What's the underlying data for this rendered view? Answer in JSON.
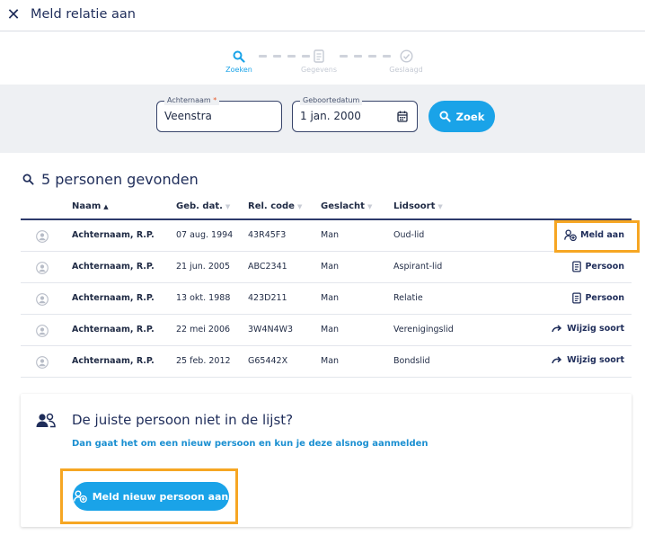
{
  "header": {
    "title": "Meld relatie aan",
    "close_icon": "close-icon"
  },
  "stepper": {
    "steps": [
      {
        "label": "Zoeken",
        "icon": "search-icon",
        "active": true
      },
      {
        "label": "Gegevens",
        "icon": "document-icon",
        "active": false
      },
      {
        "label": "Geslaagd",
        "icon": "check-circle-icon",
        "active": false
      }
    ]
  },
  "search": {
    "achternaam_label": "Achternaam",
    "required_mark": "*",
    "achternaam_value": "Veenstra",
    "geboortedatum_label": "Geboortedatum",
    "geboortedatum_value": "1 jan. 2000",
    "zoek_label": "Zoek"
  },
  "results": {
    "title": "5 personen gevonden",
    "columns": [
      "Naam",
      "Geb. dat.",
      "Rel. code",
      "Geslacht",
      "Lidsoort"
    ],
    "rows": [
      {
        "name": "Achternaam, R.P.",
        "dob": "07 aug. 1994",
        "code": "43R45F3",
        "gender": "Man",
        "type": "Oud-lid",
        "action": "Meld aan",
        "action_icon": "person-add-icon"
      },
      {
        "name": "Achternaam, R.P.",
        "dob": "21 jun. 2005",
        "code": "ABC2341",
        "gender": "Man",
        "type": "Aspirant-lid",
        "action": "Persoon",
        "action_icon": "document-icon"
      },
      {
        "name": "Achternaam, R.P.",
        "dob": "13 okt. 1988",
        "code": "423D211",
        "gender": "Man",
        "type": "Relatie",
        "action": "Persoon",
        "action_icon": "document-icon"
      },
      {
        "name": "Achternaam, R.P.",
        "dob": "22 mei 2006",
        "code": "3W4N4W3",
        "gender": "Man",
        "type": "Verenigingslid",
        "action": "Wijzig soort",
        "action_icon": "redo-arrow-icon"
      },
      {
        "name": "Achternaam, R.P.",
        "dob": "25 feb. 2012",
        "code": "G65442X",
        "gender": "Man",
        "type": "Bondslid",
        "action": "Wijzig soort",
        "action_icon": "redo-arrow-icon"
      }
    ]
  },
  "not_found": {
    "title": "De juiste persoon niet in de lijst?",
    "subtitle": "Dan gaat het om een nieuw persoon en kun je deze alsnog aanmelden",
    "button_label": "Meld nieuw persoon aan"
  },
  "colors": {
    "accent": "#1aa3e8",
    "navy": "#1f2d5a",
    "highlight": "#f6a623",
    "band": "#eef0f3"
  }
}
